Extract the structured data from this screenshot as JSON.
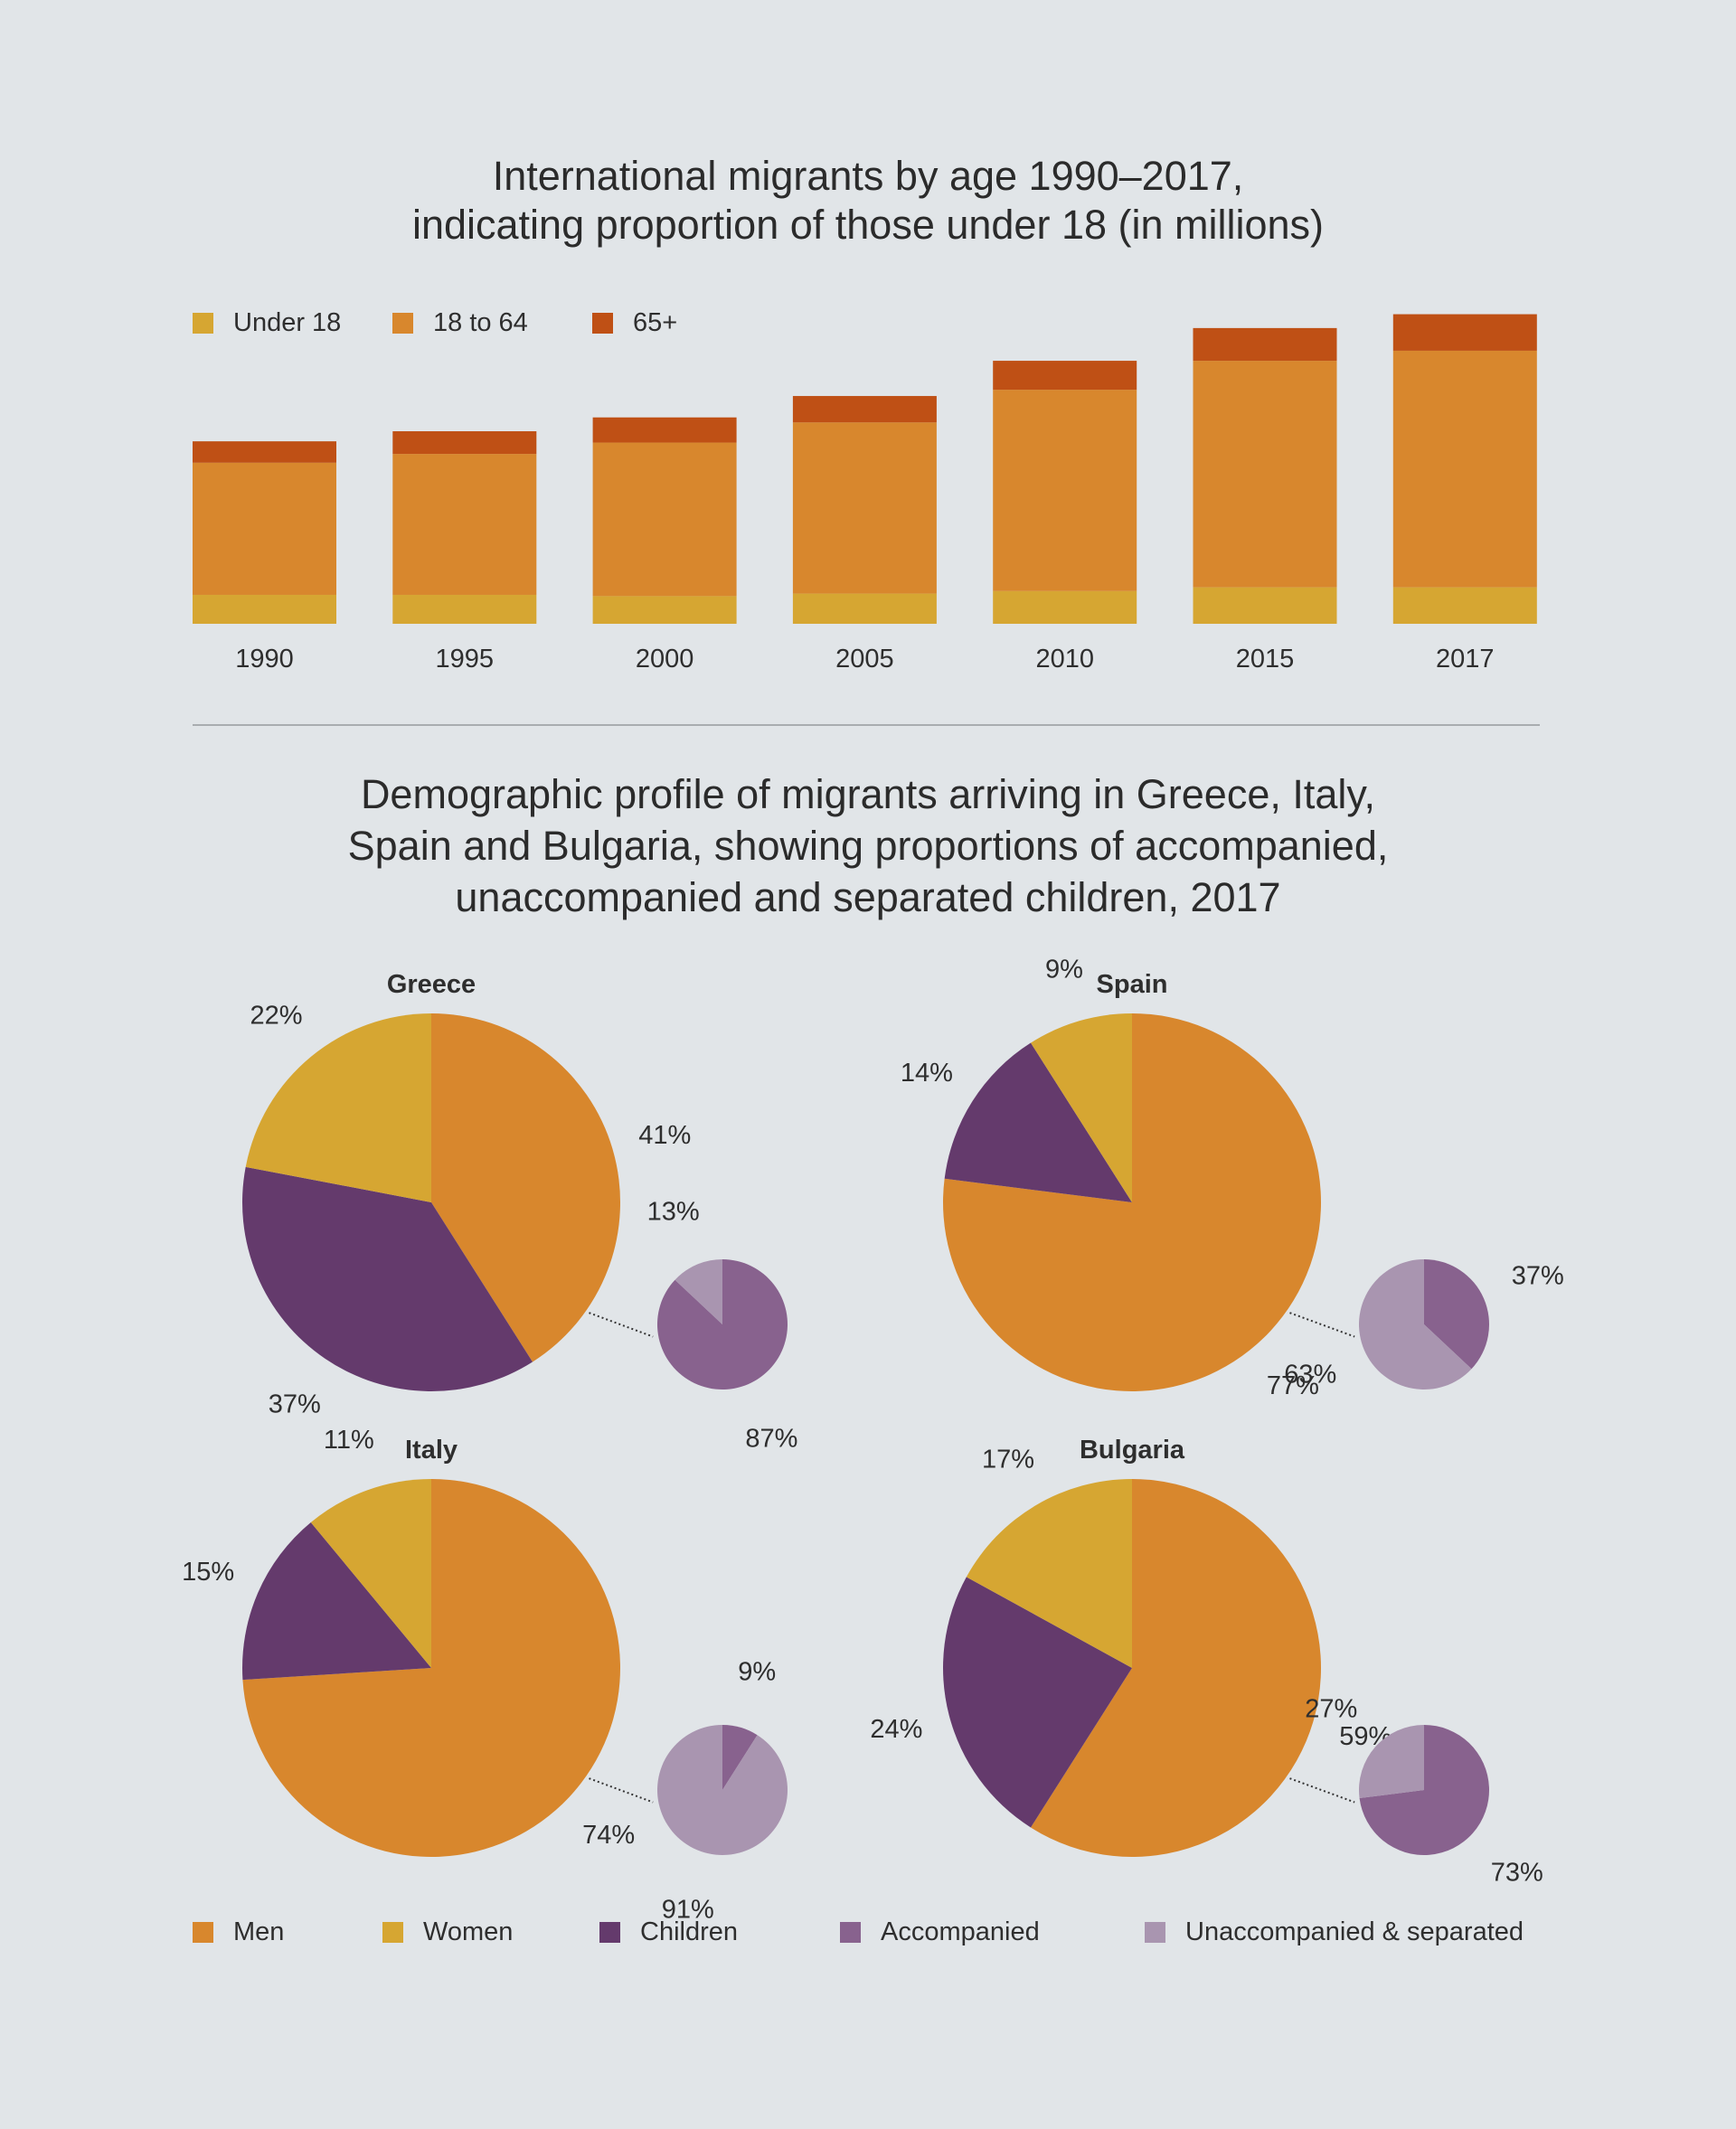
{
  "colors": {
    "under_18": "#d6a632",
    "age_18_to_64": "#d8872d",
    "age_65_plus": "#bf5015",
    "men": "#d8872d",
    "women": "#d6a632",
    "children": "#643a6c",
    "accompanied": "#88628e",
    "unaccompanied_separated": "#a995b0"
  },
  "bar_chart": {
    "title_lines": [
      "International migrants by age 1990–2017,",
      "indicating proportion of those under 18 (in millions)"
    ],
    "legend": [
      "Under 18",
      "18 to 64",
      "65+"
    ]
  },
  "pie_section": {
    "title_lines": [
      "Demographic profile of migrants arriving in Greece, Italy,",
      "Spain and Bulgaria, showing proportions of accompanied,",
      "unaccompanied and separated children, 2017"
    ],
    "legend": [
      "Men",
      "Women",
      "Children",
      "Accompanied",
      "Unaccompanied & separated"
    ]
  },
  "chart_data": [
    {
      "type": "bar",
      "stacked": true,
      "categories": [
        "1990",
        "1995",
        "2000",
        "2005",
        "2010",
        "2015",
        "2017"
      ],
      "series": [
        {
          "name": "Under 18",
          "values": [
            23,
            23,
            22,
            24,
            26,
            29,
            29
          ]
        },
        {
          "name": "18 to 64",
          "values": [
            105,
            112,
            122,
            136,
            160,
            180,
            188
          ]
        },
        {
          "name": "65+",
          "values": [
            17,
            18,
            20,
            21,
            23,
            26,
            29
          ]
        }
      ],
      "ylim": [
        0,
        250
      ],
      "grid": false,
      "legend_position": "top-left"
    },
    {
      "type": "pie",
      "charts": [
        {
          "country": "Greece",
          "slices": [
            {
              "name": "Men",
              "value": 41,
              "label": "41%"
            },
            {
              "name": "Children",
              "value": 37,
              "label": "37%"
            },
            {
              "name": "Women",
              "value": 22,
              "label": "22%"
            }
          ],
          "children_breakdown": [
            {
              "name": "Accompanied",
              "value": 87,
              "label": "87%"
            },
            {
              "name": "Unaccompanied & separated",
              "value": 13,
              "label": "13%"
            }
          ]
        },
        {
          "country": "Spain",
          "slices": [
            {
              "name": "Men",
              "value": 77,
              "label": "77%"
            },
            {
              "name": "Children",
              "value": 14,
              "label": "14%"
            },
            {
              "name": "Women",
              "value": 9,
              "label": "9%"
            }
          ],
          "children_breakdown": [
            {
              "name": "Accompanied",
              "value": 37,
              "label": "37%"
            },
            {
              "name": "Unaccompanied & separated",
              "value": 63,
              "label": "63%"
            }
          ]
        },
        {
          "country": "Italy",
          "slices": [
            {
              "name": "Men",
              "value": 74,
              "label": "74%"
            },
            {
              "name": "Children",
              "value": 15,
              "label": "15%"
            },
            {
              "name": "Women",
              "value": 11,
              "label": "11%"
            }
          ],
          "children_breakdown": [
            {
              "name": "Accompanied",
              "value": 9,
              "label": "9%"
            },
            {
              "name": "Unaccompanied & separated",
              "value": 91,
              "label": "91%"
            }
          ]
        },
        {
          "country": "Bulgaria",
          "slices": [
            {
              "name": "Men",
              "value": 59,
              "label": "59%"
            },
            {
              "name": "Children",
              "value": 24,
              "label": "24%"
            },
            {
              "name": "Women",
              "value": 17,
              "label": "17%"
            }
          ],
          "children_breakdown": [
            {
              "name": "Accompanied",
              "value": 73,
              "label": "73%"
            },
            {
              "name": "Unaccompanied & separated",
              "value": 27,
              "label": "27%"
            }
          ]
        }
      ],
      "legend_position": "bottom"
    }
  ]
}
